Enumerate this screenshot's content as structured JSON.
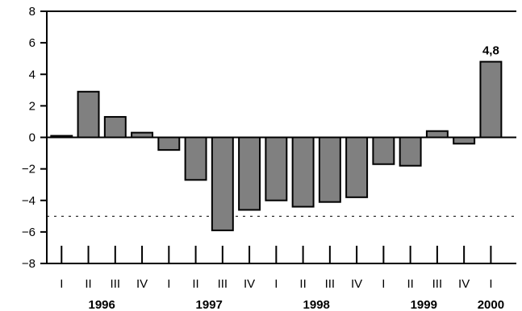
{
  "chart_data": {
    "type": "bar",
    "categories": [
      "I",
      "II",
      "III",
      "IV",
      "I",
      "II",
      "III",
      "IV",
      "I",
      "II",
      "III",
      "IV",
      "I",
      "II",
      "III",
      "IV",
      "I"
    ],
    "years": [
      {
        "label": "1996",
        "start": 0,
        "end": 3
      },
      {
        "label": "1997",
        "start": 4,
        "end": 7
      },
      {
        "label": "1998",
        "start": 8,
        "end": 11
      },
      {
        "label": "1999",
        "start": 12,
        "end": 15
      },
      {
        "label": "2000",
        "start": 16,
        "end": 16
      }
    ],
    "series": [
      {
        "values": [
          0.1,
          2.9,
          1.3,
          0.3,
          -0.8,
          -2.7,
          -5.9,
          -4.6,
          -4.0,
          -4.4,
          -4.1,
          -3.8,
          -1.7,
          -1.8,
          0.4,
          -0.4,
          4.8
        ]
      }
    ],
    "ylim": [
      -8,
      8
    ],
    "yticks": [
      8,
      6,
      4,
      2,
      0,
      -2,
      -4,
      -6,
      -8
    ],
    "ytick_labels": [
      "8",
      "6",
      "4",
      "2",
      "0",
      "−2",
      "−4",
      "−6",
      "−8"
    ],
    "reference_line": -5,
    "data_labels": [
      {
        "index": 16,
        "text": "4,8"
      }
    ],
    "bar_color": "#808080",
    "grid": false
  }
}
